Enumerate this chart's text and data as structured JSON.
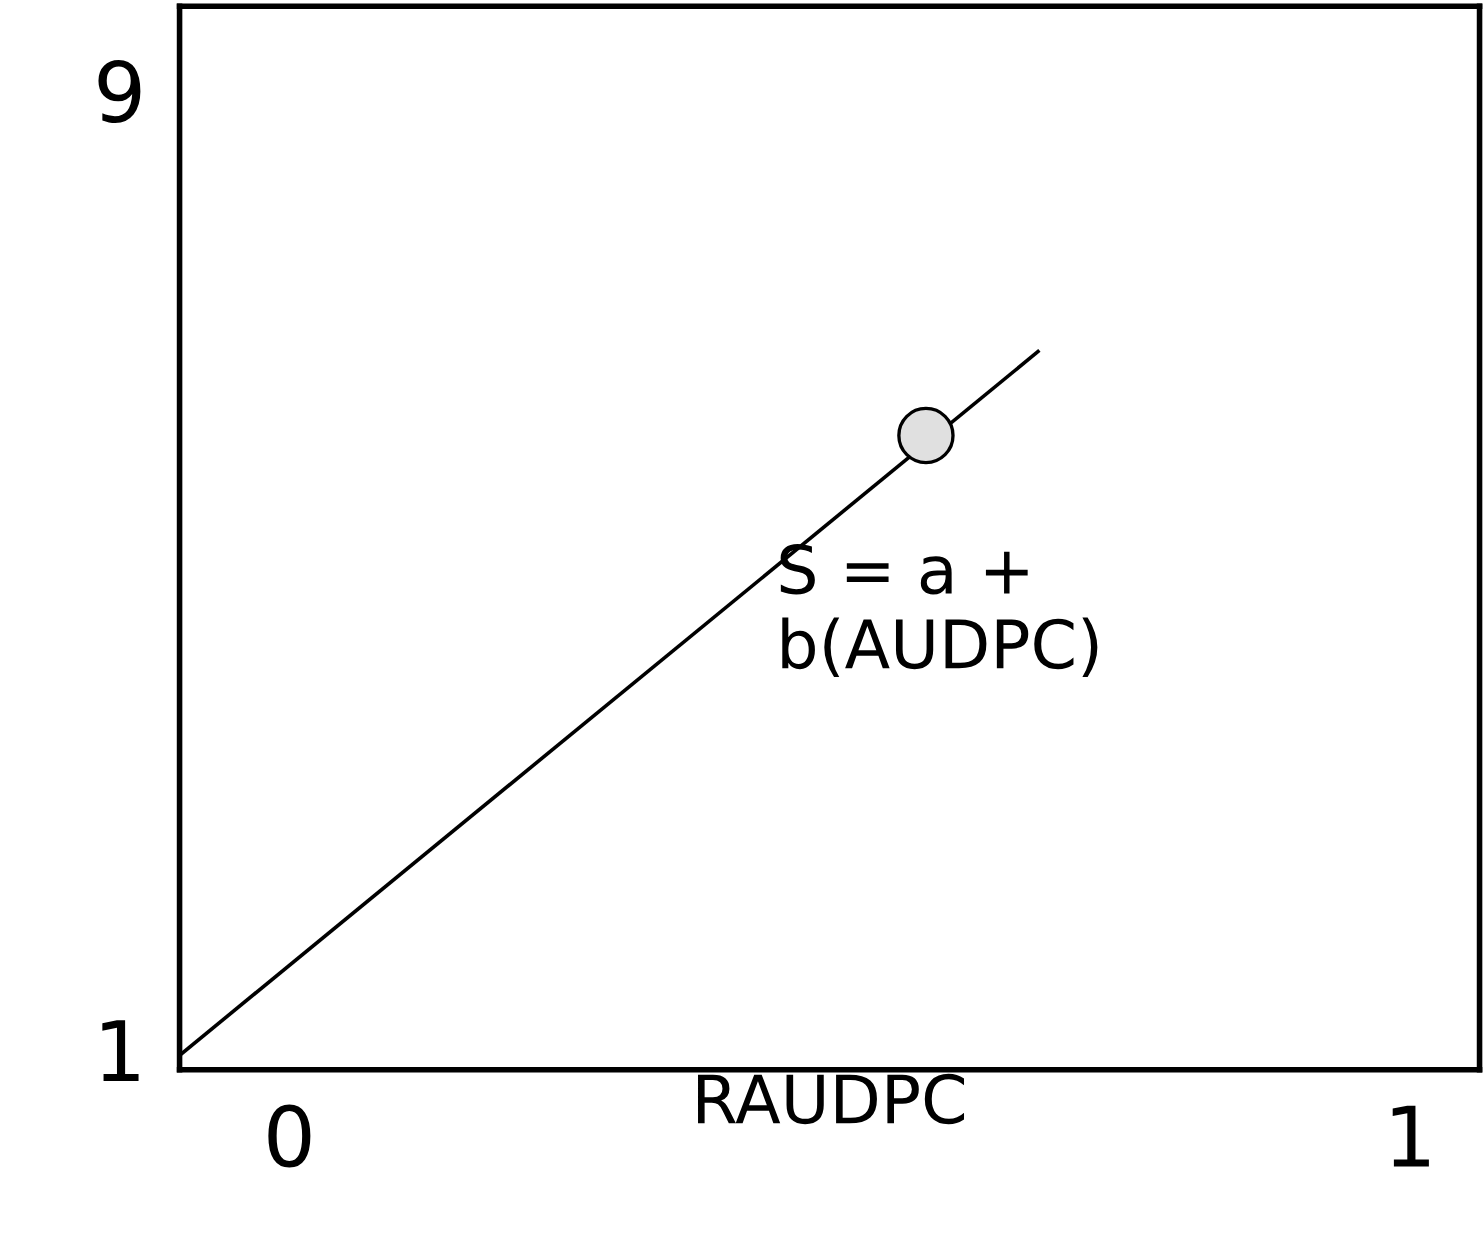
{
  "chart_data": {
    "type": "line",
    "xlabel": "RAUDPC",
    "xlim": [
      -0.098,
      1.062
    ],
    "ylim": [
      0.83,
      9.7
    ],
    "xticks": [
      0,
      1
    ],
    "yticks": [
      1,
      9
    ],
    "grid": false,
    "legend": false,
    "series": [
      {
        "color": "#000000",
        "x": [
          -0.098,
          0.668
        ],
        "values": [
          0.95,
          6.82
        ],
        "marker": "none"
      },
      {
        "type": "scatter",
        "color": "#e0e0e0",
        "x": [
          0.568
        ],
        "values": [
          6.12
        ],
        "marker": "circle"
      }
    ],
    "annotations": [
      "S = a +\nb(AUDPC)"
    ]
  }
}
